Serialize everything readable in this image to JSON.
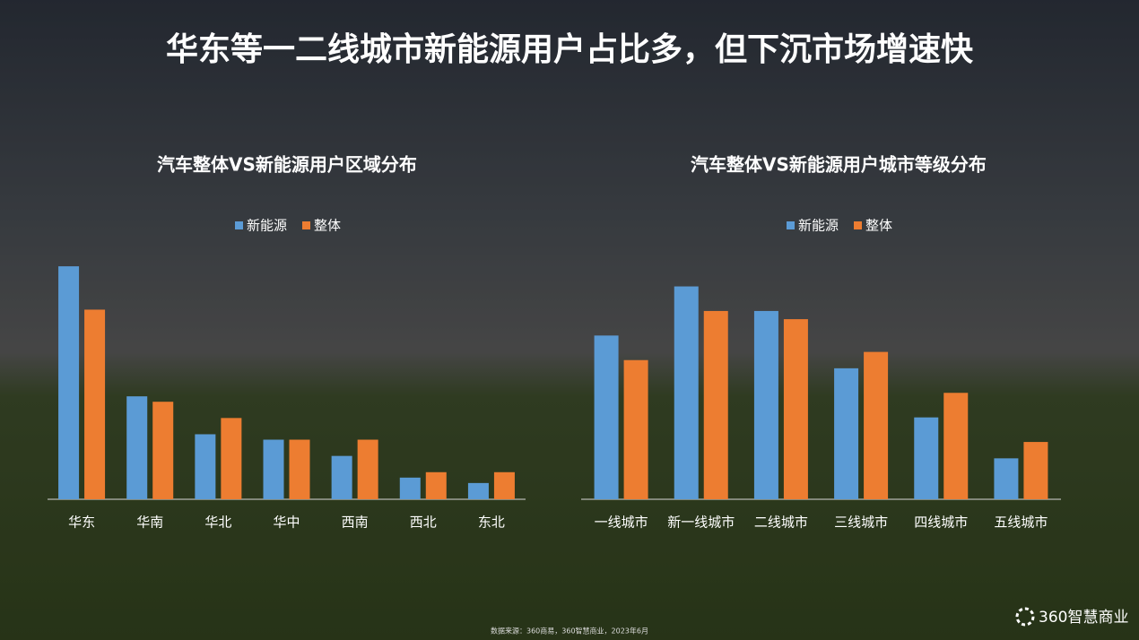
{
  "title": "华东等一二线城市新能源用户占比多，但下沉市场增速快",
  "source": "数据来源：360商易，360智慧商业，2023年6月",
  "logo": "360智慧商业",
  "chart_data": [
    {
      "type": "bar",
      "title": "汽车整体VS新能源用户区域分布",
      "categories": [
        "华东",
        "华南",
        "华北",
        "华中",
        "西南",
        "西北",
        "东北"
      ],
      "series": [
        {
          "name": "新能源",
          "color": "#5b9bd5",
          "values": [
            43,
            19,
            12,
            11,
            8,
            4,
            3
          ]
        },
        {
          "name": "整体",
          "color": "#ed7d31",
          "values": [
            35,
            18,
            15,
            11,
            11,
            5,
            5
          ]
        }
      ],
      "ylim": [
        0,
        45
      ]
    },
    {
      "type": "bar",
      "title": "汽车整体VS新能源用户城市等级分布",
      "categories": [
        "一线城市",
        "新一线城市",
        "二线城市",
        "三线城市",
        "四线城市",
        "五线城市"
      ],
      "series": [
        {
          "name": "新能源",
          "color": "#5b9bd5",
          "values": [
            20,
            26,
            23,
            16,
            10,
            5
          ]
        },
        {
          "name": "整体",
          "color": "#ed7d31",
          "values": [
            17,
            23,
            22,
            18,
            13,
            7
          ]
        }
      ],
      "ylim": [
        0,
        30
      ]
    }
  ]
}
